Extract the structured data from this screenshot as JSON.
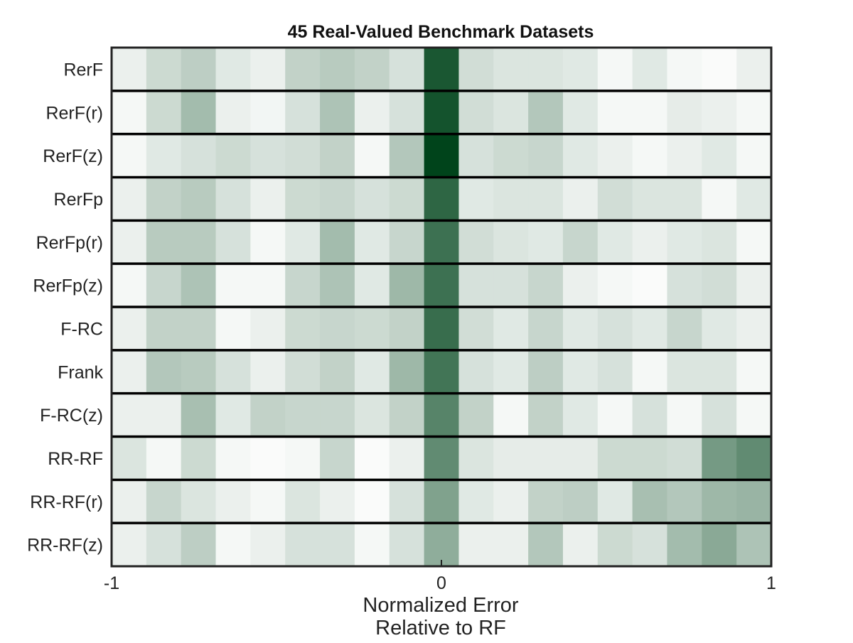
{
  "chart_data": {
    "type": "heatmap",
    "title": "45 Real-Valued Benchmark Datasets",
    "xlabel": [
      "Normalized Error",
      "Relative to RF"
    ],
    "xlim": [
      -1,
      1
    ],
    "xticks": [
      "-1",
      "0",
      "1"
    ],
    "bins": 19,
    "colorscale": {
      "low": "#ffffff",
      "high": "#00441b"
    },
    "rows": [
      {
        "name": "RerF",
        "values": [
          0.08,
          0.2,
          0.26,
          0.12,
          0.08,
          0.24,
          0.28,
          0.24,
          0.16,
          0.9,
          0.18,
          0.14,
          0.14,
          0.12,
          0.04,
          0.12,
          0.04,
          0.02,
          0.08
        ]
      },
      {
        "name": "RerF(r)",
        "values": [
          0.04,
          0.2,
          0.36,
          0.08,
          0.05,
          0.16,
          0.32,
          0.08,
          0.16,
          0.92,
          0.18,
          0.14,
          0.3,
          0.12,
          0.04,
          0.04,
          0.1,
          0.08,
          0.04
        ]
      },
      {
        "name": "RerF(z)",
        "values": [
          0.04,
          0.12,
          0.16,
          0.2,
          0.16,
          0.18,
          0.24,
          0.04,
          0.3,
          1.0,
          0.16,
          0.2,
          0.22,
          0.12,
          0.08,
          0.04,
          0.08,
          0.12,
          0.04
        ]
      },
      {
        "name": "RerFp",
        "values": [
          0.08,
          0.24,
          0.28,
          0.16,
          0.08,
          0.2,
          0.22,
          0.16,
          0.2,
          0.82,
          0.12,
          0.14,
          0.14,
          0.08,
          0.18,
          0.14,
          0.14,
          0.04,
          0.12
        ]
      },
      {
        "name": "RerFp(r)",
        "values": [
          0.08,
          0.28,
          0.28,
          0.16,
          0.04,
          0.12,
          0.36,
          0.12,
          0.22,
          0.76,
          0.18,
          0.14,
          0.12,
          0.22,
          0.12,
          0.08,
          0.12,
          0.14,
          0.04
        ]
      },
      {
        "name": "RerFp(z)",
        "values": [
          0.04,
          0.22,
          0.32,
          0.04,
          0.04,
          0.22,
          0.32,
          0.12,
          0.38,
          0.76,
          0.16,
          0.16,
          0.22,
          0.08,
          0.04,
          0.02,
          0.16,
          0.18,
          0.08
        ]
      },
      {
        "name": "F-RC",
        "values": [
          0.08,
          0.24,
          0.24,
          0.04,
          0.08,
          0.2,
          0.22,
          0.2,
          0.24,
          0.78,
          0.18,
          0.12,
          0.22,
          0.12,
          0.16,
          0.12,
          0.22,
          0.12,
          0.08
        ]
      },
      {
        "name": "Frank",
        "values": [
          0.08,
          0.3,
          0.28,
          0.16,
          0.08,
          0.18,
          0.24,
          0.12,
          0.38,
          0.74,
          0.16,
          0.12,
          0.26,
          0.12,
          0.16,
          0.04,
          0.14,
          0.14,
          0.04
        ]
      },
      {
        "name": "F-RC(z)",
        "values": [
          0.08,
          0.08,
          0.34,
          0.12,
          0.24,
          0.22,
          0.22,
          0.14,
          0.24,
          0.66,
          0.24,
          0.04,
          0.24,
          0.12,
          0.04,
          0.16,
          0.04,
          0.16,
          0.04
        ]
      },
      {
        "name": "RR-RF",
        "values": [
          0.14,
          0.04,
          0.2,
          0.04,
          0.02,
          0.04,
          0.22,
          0.02,
          0.08,
          0.62,
          0.14,
          0.1,
          0.1,
          0.1,
          0.2,
          0.2,
          0.18,
          0.54,
          0.62
        ]
      },
      {
        "name": "RR-RF(r)",
        "values": [
          0.08,
          0.22,
          0.14,
          0.08,
          0.04,
          0.14,
          0.08,
          0.02,
          0.16,
          0.5,
          0.12,
          0.08,
          0.24,
          0.26,
          0.12,
          0.34,
          0.3,
          0.38,
          0.4
        ]
      },
      {
        "name": "RR-RF(z)",
        "values": [
          0.08,
          0.16,
          0.26,
          0.04,
          0.08,
          0.16,
          0.16,
          0.04,
          0.16,
          0.44,
          0.08,
          0.08,
          0.3,
          0.08,
          0.2,
          0.16,
          0.36,
          0.46,
          0.32
        ]
      }
    ]
  }
}
